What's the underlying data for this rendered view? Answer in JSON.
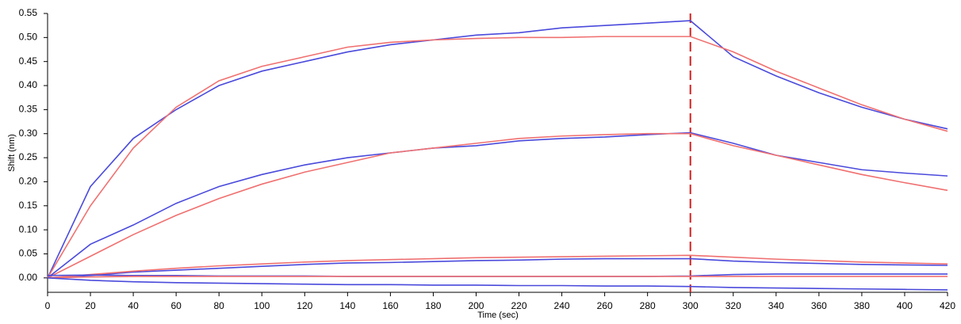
{
  "chart_data": {
    "type": "line",
    "x_label": "Time (sec)",
    "y_label": "Shift (nm)",
    "x": [
      0,
      20,
      40,
      60,
      80,
      100,
      120,
      140,
      160,
      180,
      200,
      220,
      240,
      260,
      280,
      300,
      320,
      340,
      360,
      380,
      400,
      420
    ],
    "series": [
      {
        "color": "#4a4adc",
        "values": [
          0,
          0.19,
          0.29,
          0.35,
          0.4,
          0.43,
          0.45,
          0.47,
          0.485,
          0.495,
          0.505,
          0.51,
          0.52,
          0.525,
          0.53,
          0.535,
          0.46,
          0.42,
          0.385,
          0.355,
          0.33,
          0.31
        ]
      },
      {
        "color": "#f07070",
        "values": [
          0,
          0.15,
          0.27,
          0.355,
          0.41,
          0.44,
          0.46,
          0.48,
          0.49,
          0.495,
          0.498,
          0.5,
          0.5,
          0.502,
          0.502,
          0.502,
          0.47,
          0.43,
          0.395,
          0.36,
          0.33,
          0.305
        ]
      },
      {
        "color": "#4a4adc",
        "values": [
          0,
          0.07,
          0.11,
          0.155,
          0.19,
          0.215,
          0.235,
          0.25,
          0.26,
          0.27,
          0.275,
          0.285,
          0.29,
          0.293,
          0.298,
          0.302,
          0.28,
          0.255,
          0.24,
          0.225,
          0.218,
          0.212
        ]
      },
      {
        "color": "#f07070",
        "values": [
          0,
          0.045,
          0.09,
          0.13,
          0.165,
          0.195,
          0.22,
          0.24,
          0.26,
          0.27,
          0.28,
          0.29,
          0.295,
          0.298,
          0.3,
          0.3,
          0.275,
          0.255,
          0.235,
          0.215,
          0.198,
          0.182
        ]
      },
      {
        "color": "#4a4adc",
        "values": [
          0,
          0.005,
          0.012,
          0.016,
          0.02,
          0.024,
          0.028,
          0.031,
          0.032,
          0.034,
          0.036,
          0.037,
          0.039,
          0.04,
          0.04,
          0.04,
          0.035,
          0.032,
          0.03,
          0.028,
          0.027,
          0.026
        ]
      },
      {
        "color": "#f07070",
        "values": [
          0,
          0.007,
          0.014,
          0.02,
          0.025,
          0.029,
          0.033,
          0.036,
          0.038,
          0.04,
          0.042,
          0.043,
          0.044,
          0.045,
          0.046,
          0.047,
          0.043,
          0.039,
          0.036,
          0.033,
          0.031,
          0.029
        ]
      },
      {
        "color": "#4a4adc",
        "values": [
          0.005,
          0.006,
          0.005,
          0.005,
          0.004,
          0.004,
          0.004,
          0.003,
          0.003,
          0.003,
          0.003,
          0.003,
          0.003,
          0.003,
          0.003,
          0.004,
          0.007,
          0.008,
          0.008,
          0.008,
          0.008,
          0.008
        ]
      },
      {
        "color": "#f07070",
        "values": [
          0,
          0.002,
          0.003,
          0.003,
          0.003,
          0.003,
          0.003,
          0.003,
          0.003,
          0.003,
          0.003,
          0.003,
          0.003,
          0.003,
          0.003,
          0.003,
          0.003,
          0.003,
          0.003,
          0.003,
          0.003,
          0.003
        ]
      },
      {
        "color": "#4a4adc",
        "values": [
          0,
          -0.005,
          -0.008,
          -0.01,
          -0.011,
          -0.012,
          -0.013,
          -0.014,
          -0.014,
          -0.015,
          -0.015,
          -0.016,
          -0.016,
          -0.017,
          -0.017,
          -0.018,
          -0.02,
          -0.021,
          -0.022,
          -0.023,
          -0.024,
          -0.025
        ]
      }
    ],
    "xlim": [
      0,
      420
    ],
    "xticks": [
      0,
      20,
      40,
      60,
      80,
      100,
      120,
      140,
      160,
      180,
      200,
      220,
      240,
      260,
      280,
      300,
      320,
      340,
      360,
      380,
      400,
      420
    ],
    "ylim": [
      -0.03,
      0.55
    ],
    "yticks": [
      {
        "value": 0,
        "label": "0.00"
      },
      {
        "value": 0.05,
        "label": "0.05"
      },
      {
        "value": 0.1,
        "label": "0.10"
      },
      {
        "value": 0.15,
        "label": "0.15"
      },
      {
        "value": 0.2,
        "label": "0.20"
      },
      {
        "value": 0.25,
        "label": "0.25"
      },
      {
        "value": 0.3,
        "label": "0.30"
      },
      {
        "value": 0.35,
        "label": "0.35"
      },
      {
        "value": 0.4,
        "label": "0.40"
      },
      {
        "value": 0.45,
        "label": "0.45"
      },
      {
        "value": 0.5,
        "label": "0.50"
      },
      {
        "value": 0.55,
        "label": "0.55"
      }
    ],
    "vlines": [
      {
        "x": 300,
        "color": "#d42020"
      }
    ],
    "grid": false
  }
}
